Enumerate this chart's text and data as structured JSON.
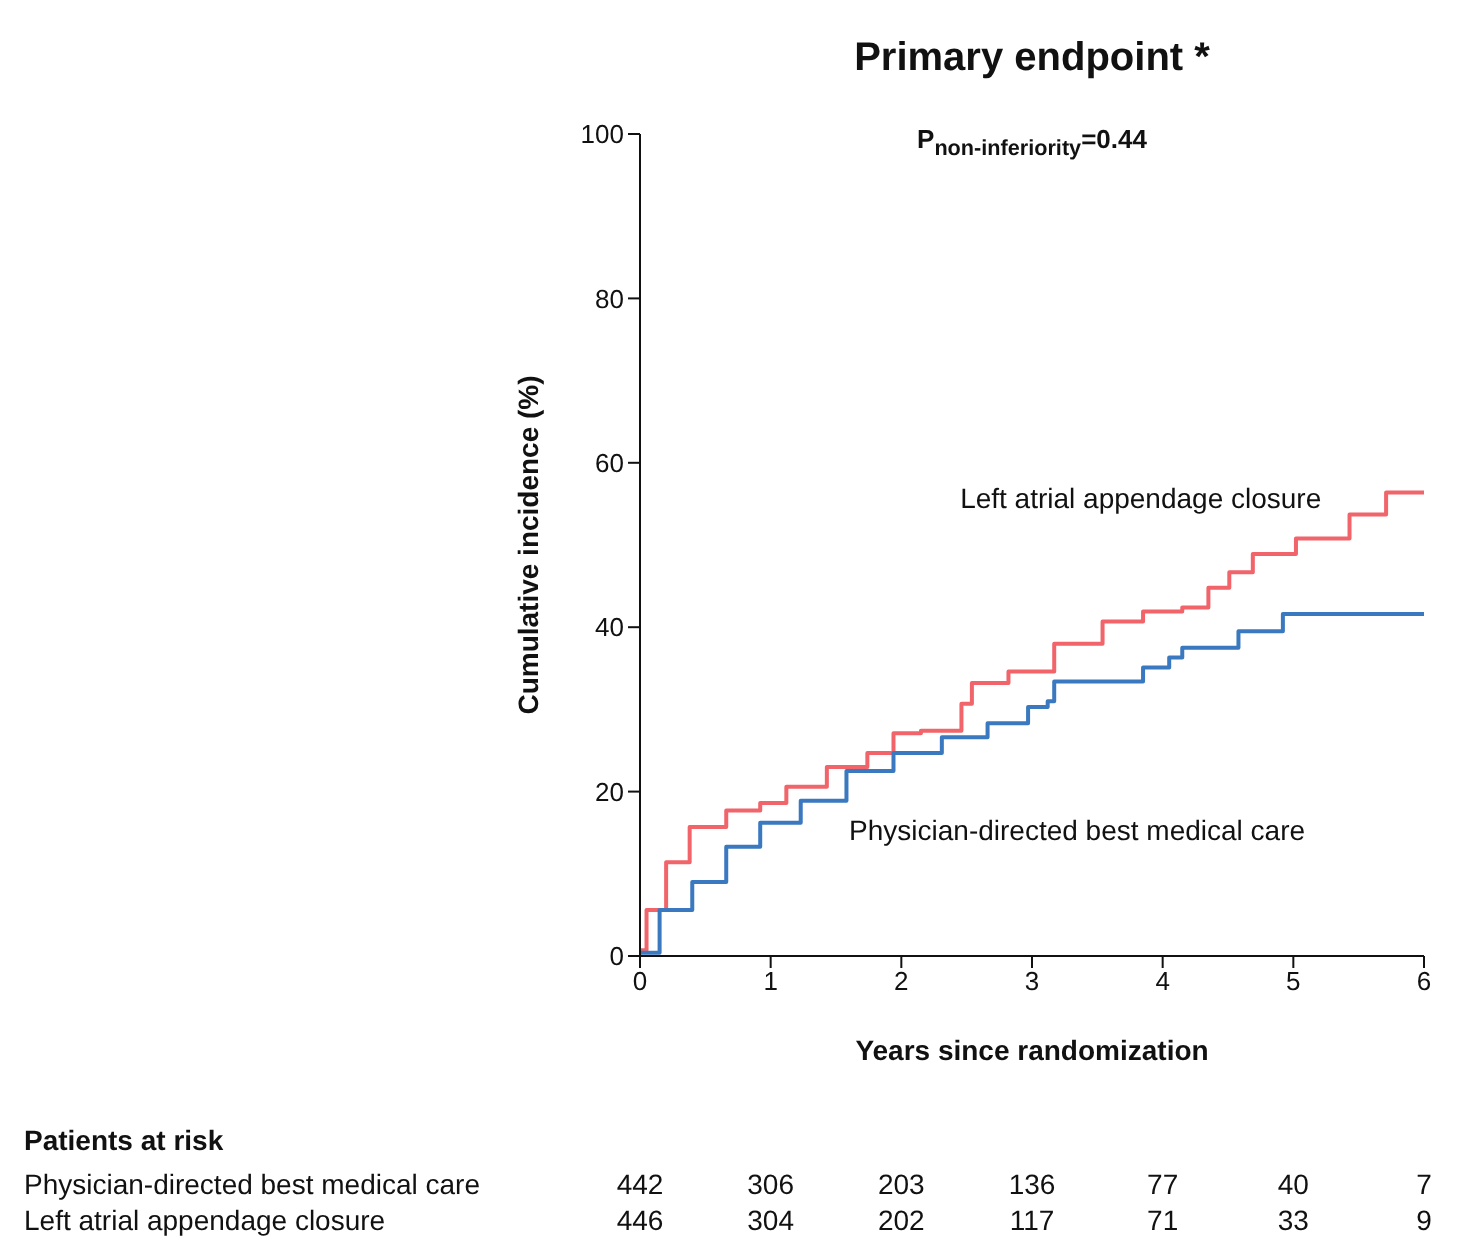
{
  "chart_data": {
    "type": "step",
    "title": "Primary endpoint *",
    "subtitle": "P$_{non-inferiority}$=0.44",
    "xlabel": "Years since randomization",
    "ylabel": "Cumulative incidence (%)",
    "xlim": [
      0,
      6
    ],
    "xticks": [
      0,
      1,
      2,
      3,
      4,
      5,
      6
    ],
    "ylim": [
      0,
      100
    ],
    "yticks": [
      0,
      20,
      40,
      60,
      80,
      100
    ],
    "series": [
      {
        "name": "Left atrial appendage closure",
        "color": "#f0646a",
        "x": [
          0,
          0.05,
          0.2,
          0.38,
          0.66,
          0.92,
          1.12,
          1.43,
          1.74,
          1.94,
          2.15,
          2.46,
          2.54,
          2.82,
          3.17,
          3.54,
          3.85,
          4.15,
          4.35,
          4.51,
          4.69,
          5.02,
          5.43,
          5.71,
          6
        ],
        "values": [
          0.7,
          5.6,
          11.4,
          15.7,
          17.7,
          18.6,
          20.6,
          23,
          24.7,
          27.1,
          27.4,
          30.7,
          33.2,
          34.6,
          38,
          40.7,
          41.9,
          42.4,
          44.8,
          46.7,
          48.9,
          50.8,
          53.7,
          56.4,
          56.4
        ]
      },
      {
        "name": "Physician-directed best medical care",
        "color": "#3a78c0",
        "x": [
          0,
          0.15,
          0.4,
          0.66,
          0.92,
          1.23,
          1.58,
          1.94,
          2.31,
          2.66,
          2.97,
          3.12,
          3.17,
          3.58,
          3.85,
          4.05,
          4.15,
          4.58,
          4.92,
          6
        ],
        "values": [
          0.4,
          5.6,
          9,
          13.3,
          16.2,
          18.9,
          22.5,
          24.7,
          26.6,
          28.3,
          30.3,
          31,
          33.4,
          33.4,
          35.1,
          36.3,
          37.5,
          39.5,
          41.6,
          41.6
        ]
      }
    ],
    "annotations": [
      "Patients at risk",
      "Physician-directed best medical care",
      "442",
      "306",
      "203",
      "136",
      "77",
      "40",
      "7",
      "Left atrial appendage closure",
      "446",
      "304",
      "202",
      "117",
      "71",
      "33",
      "9"
    ]
  }
}
